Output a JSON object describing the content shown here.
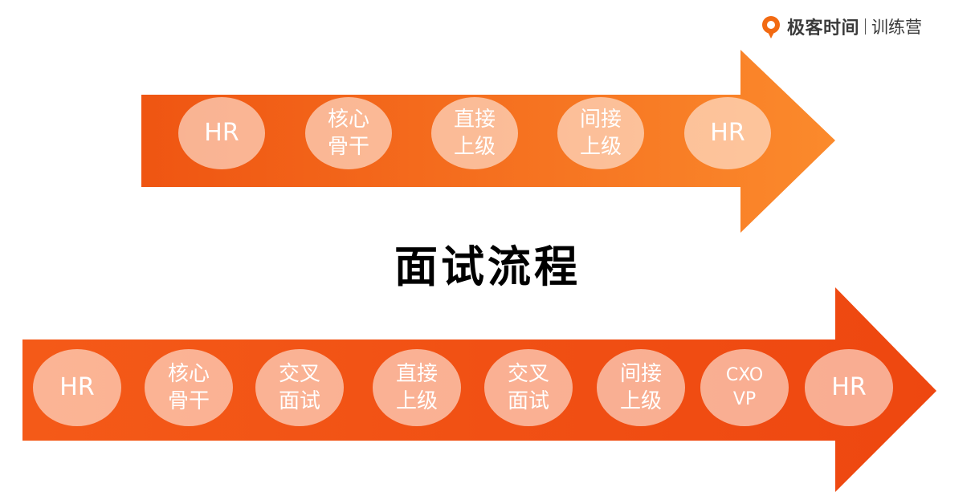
{
  "brand": {
    "name": "极客时间",
    "sub": "训练营",
    "accent": "#f26a12"
  },
  "title": "面试流程",
  "colors": {
    "arrow_light": "#fb8a2c",
    "arrow_dark": "#ef4c10",
    "node_fill": "#fde9dd"
  },
  "flows": [
    {
      "steps": [
        {
          "lines": [
            "HR"
          ]
        },
        {
          "lines": [
            "核心",
            "骨干"
          ]
        },
        {
          "lines": [
            "直接",
            "上级"
          ]
        },
        {
          "lines": [
            "间接",
            "上级"
          ]
        },
        {
          "lines": [
            "HR"
          ]
        }
      ]
    },
    {
      "steps": [
        {
          "lines": [
            "HR"
          ]
        },
        {
          "lines": [
            "核心",
            "骨干"
          ]
        },
        {
          "lines": [
            "交叉",
            "面试"
          ]
        },
        {
          "lines": [
            "直接",
            "上级"
          ]
        },
        {
          "lines": [
            "交叉",
            "面试"
          ]
        },
        {
          "lines": [
            "间接",
            "上级"
          ]
        },
        {
          "lines": [
            "CXO",
            "VP"
          ]
        },
        {
          "lines": [
            "HR"
          ]
        }
      ]
    }
  ]
}
